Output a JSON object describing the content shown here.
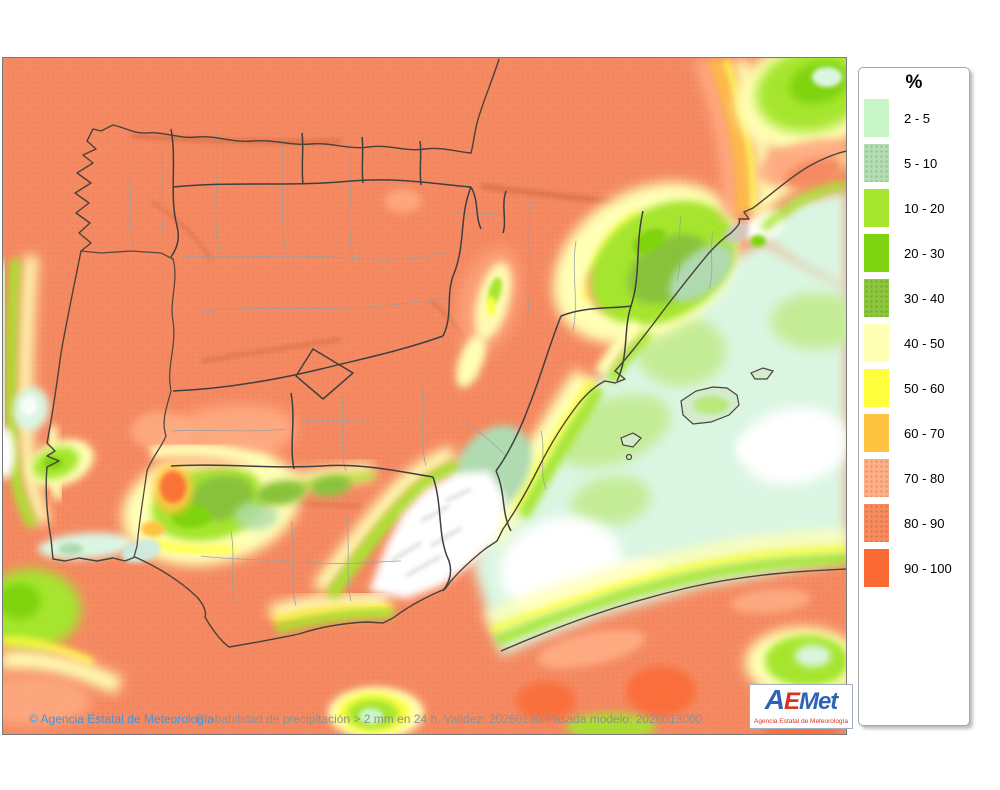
{
  "map": {
    "copyright": "© Agencia Estatal de Meteorología",
    "caption": "Probabilidad de precipitación > 2 mm en 24 h. Validez: 20260130 Pasada modelo: 2026013000"
  },
  "legend": {
    "title": "%",
    "items": [
      {
        "label": "2 - 5",
        "color": "#c9f6c9",
        "speckled": false
      },
      {
        "label": "5 - 10",
        "color": "#b3ddb3",
        "speckled": true
      },
      {
        "label": "10 - 20",
        "color": "#a5e52e",
        "speckled": false
      },
      {
        "label": "20 - 30",
        "color": "#7fd411",
        "speckled": false
      },
      {
        "label": "30 - 40",
        "color": "#8cc63c",
        "speckled": true
      },
      {
        "label": "40 - 50",
        "color": "#ffffb5",
        "speckled": false
      },
      {
        "label": "50 - 60",
        "color": "#ffff3d",
        "speckled": false
      },
      {
        "label": "60 - 70",
        "color": "#ffc342",
        "speckled": false
      },
      {
        "label": "70 - 80",
        "color": "#ffae85",
        "speckled": true
      },
      {
        "label": "80 - 90",
        "color": "#f88b5e",
        "speckled": true
      },
      {
        "label": "90 - 100",
        "color": "#fb6a35",
        "speckled": false
      }
    ]
  },
  "logo": {
    "part_a": "A",
    "part_e": "E",
    "part_met": "Met",
    "tagline": "Agencia Estatal de Meteorología",
    "blue": "#2f63b5",
    "red": "#d8321f"
  },
  "palette": {
    "p2_5": "#c9f6c9",
    "p5_10": "#b3ddb3",
    "p10_20": "#a5e52e",
    "p20_30": "#7fd411",
    "p30_40": "#8cc63c",
    "p40_50": "#ffffb5",
    "p50_60": "#ffff3d",
    "p60_70": "#ffc342",
    "p70_80": "#ffae85",
    "p80_90": "#f58a62",
    "p90_100": "#fb6a35",
    "sea_mint": "#daf6e2",
    "sea_green": "#c4ec96",
    "below2": "#ffffff",
    "dry_gray": "#c9c9c9",
    "mint_cyan": "#cfeadf",
    "island_mint": "#d2eccd",
    "coast_line": "#4a4238",
    "region_border": "#3f3f3f",
    "province_border": "#9aa0a0",
    "copyright_blue": "#3a97e8",
    "caption_gray": "#8f8f8f"
  }
}
